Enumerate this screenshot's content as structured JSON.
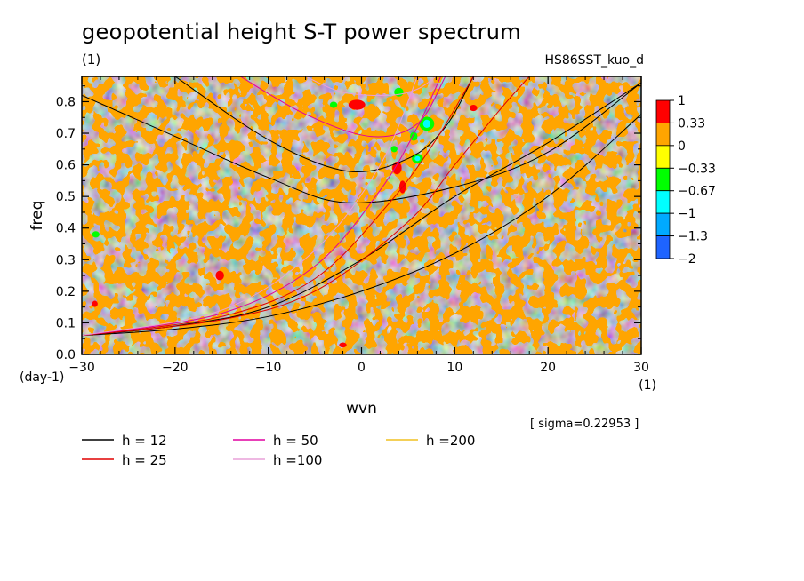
{
  "header": {
    "title": "geopotential height S-T power spectrum",
    "subtitle_left": "(1)",
    "subtitle_right": "HS86SST_kuo_d"
  },
  "sigma_text": "[ sigma=0.22953 ]",
  "chart_data": {
    "type": "heatmap",
    "xlabel": "wvn",
    "ylabel": "freq",
    "x_unit": "(1)",
    "y_unit": "(day-1)",
    "xlim": [
      -30,
      30
    ],
    "ylim": [
      0,
      0.88
    ],
    "x_ticks": [
      -30,
      -20,
      -10,
      0,
      10,
      20,
      30
    ],
    "x_tick_labels": [
      "−30",
      "−20",
      "−10",
      "0",
      "10",
      "20",
      "30"
    ],
    "y_ticks": [
      0.0,
      0.1,
      0.2,
      0.3,
      0.4,
      0.5,
      0.6,
      0.7,
      0.8
    ],
    "y_tick_labels": [
      "0.0",
      "0.1",
      "0.2",
      "0.3",
      "0.4",
      "0.5",
      "0.6",
      "0.7",
      "0.8"
    ],
    "colorbar": {
      "levels": [
        "1",
        "0.33",
        "0",
        "−0.33",
        "−0.67",
        "−1",
        "−1.3",
        "−2"
      ],
      "colors": [
        "#ff0000",
        "#ffa500",
        "#ffff00",
        "#00ff00",
        "#00ffff",
        "#00aaff",
        "#1e64ff"
      ]
    },
    "field_colors": {
      "dominant_a": "#ffa500",
      "dominant_b": "#ffff00",
      "rare": [
        "#ff0000",
        "#00ff00",
        "#00ffff"
      ]
    },
    "dispersion_curves": [
      {
        "name": "h = 12",
        "color": "#000000"
      },
      {
        "name": "h = 25",
        "color": "#e00000"
      },
      {
        "name": "h = 50",
        "color": "#e000a0"
      },
      {
        "name": "h =100",
        "color": "#e8a0d8"
      },
      {
        "name": "h =200",
        "color": "#f0c020"
      }
    ],
    "curves": [
      {
        "color": "#000000",
        "points": [
          [
            -30,
            0.06
          ],
          [
            -20,
            0.08
          ],
          [
            -10,
            0.12
          ],
          [
            0,
            0.2
          ],
          [
            10,
            0.32
          ],
          [
            20,
            0.5
          ],
          [
            30,
            0.76
          ]
        ]
      },
      {
        "color": "#000000",
        "points": [
          [
            -30,
            0.06
          ],
          [
            -20,
            0.09
          ],
          [
            -10,
            0.15
          ],
          [
            0,
            0.3
          ],
          [
            10,
            0.5
          ],
          [
            20,
            0.67
          ],
          [
            30,
            0.86
          ]
        ]
      },
      {
        "color": "#000000",
        "points": [
          [
            -30,
            0.82
          ],
          [
            -20,
            0.69
          ],
          [
            -10,
            0.56
          ],
          [
            -1.5,
            0.48
          ],
          [
            10,
            0.53
          ],
          [
            20,
            0.64
          ],
          [
            30,
            0.86
          ]
        ]
      },
      {
        "color": "#000000",
        "points": [
          [
            -20,
            0.88
          ],
          [
            -10,
            0.68
          ],
          [
            -1.5,
            0.58
          ],
          [
            5,
            0.62
          ],
          [
            9,
            0.72
          ],
          [
            12,
            0.88
          ]
        ]
      },
      {
        "color": "#e00000",
        "points": [
          [
            -30,
            0.06
          ],
          [
            -15,
            0.11
          ],
          [
            -5,
            0.2
          ],
          [
            5,
            0.42
          ],
          [
            10,
            0.6
          ],
          [
            15,
            0.78
          ],
          [
            18,
            0.88
          ]
        ]
      },
      {
        "color": "#e00000",
        "points": [
          [
            -30,
            0.06
          ],
          [
            -15,
            0.12
          ],
          [
            -5,
            0.24
          ],
          [
            3,
            0.48
          ],
          [
            8,
            0.68
          ],
          [
            12,
            0.88
          ]
        ]
      },
      {
        "color": "#e000a0",
        "points": [
          [
            -13,
            0.88
          ],
          [
            -6,
            0.76
          ],
          [
            1,
            0.69
          ],
          [
            6,
            0.73
          ],
          [
            9,
            0.88
          ]
        ]
      },
      {
        "color": "#e000a0",
        "points": [
          [
            -30,
            0.06
          ],
          [
            -15,
            0.13
          ],
          [
            -5,
            0.28
          ],
          [
            2,
            0.52
          ],
          [
            6,
            0.72
          ],
          [
            8.5,
            0.88
          ]
        ]
      },
      {
        "color": "#e8a0d8",
        "points": [
          [
            -6,
            0.88
          ],
          [
            -2,
            0.83
          ],
          [
            3,
            0.82
          ],
          [
            6,
            0.84
          ],
          [
            8,
            0.88
          ]
        ]
      },
      {
        "color": "#e8a0d8",
        "points": [
          [
            -30,
            0.06
          ],
          [
            -15,
            0.14
          ],
          [
            -5,
            0.33
          ],
          [
            2,
            0.6
          ],
          [
            6,
            0.88
          ]
        ]
      }
    ],
    "blobs": [
      {
        "c": "#ff0000",
        "x": -0.5,
        "y": 0.79,
        "rx": 0.9,
        "ry": 0.016
      },
      {
        "c": "#ff0000",
        "x": 3.8,
        "y": 0.59,
        "rx": 0.5,
        "ry": 0.02
      },
      {
        "c": "#ff0000",
        "x": 4.4,
        "y": 0.53,
        "rx": 0.35,
        "ry": 0.02
      },
      {
        "c": "#ff0000",
        "x": -15.2,
        "y": 0.25,
        "rx": 0.45,
        "ry": 0.015
      },
      {
        "c": "#ff0000",
        "x": -28.6,
        "y": 0.16,
        "rx": 0.3,
        "ry": 0.01
      },
      {
        "c": "#ff0000",
        "x": -2,
        "y": 0.03,
        "rx": 0.4,
        "ry": 0.008
      },
      {
        "c": "#ff0000",
        "x": 12,
        "y": 0.78,
        "rx": 0.4,
        "ry": 0.01
      },
      {
        "c": "#00ff00",
        "x": 4,
        "y": 0.83,
        "rx": 0.5,
        "ry": 0.014
      },
      {
        "c": "#00ff00",
        "x": 7,
        "y": 0.73,
        "rx": 0.8,
        "ry": 0.022
      },
      {
        "c": "#00ff00",
        "x": 5.6,
        "y": 0.69,
        "rx": 0.4,
        "ry": 0.014
      },
      {
        "c": "#00ff00",
        "x": 6,
        "y": 0.62,
        "rx": 0.6,
        "ry": 0.015
      },
      {
        "c": "#00ff00",
        "x": 3.5,
        "y": 0.65,
        "rx": 0.35,
        "ry": 0.01
      },
      {
        "c": "#00ff00",
        "x": -28.5,
        "y": 0.38,
        "rx": 0.4,
        "ry": 0.01
      },
      {
        "c": "#00ff00",
        "x": -3,
        "y": 0.79,
        "rx": 0.4,
        "ry": 0.01
      },
      {
        "c": "#00ffff",
        "x": 7,
        "y": 0.73,
        "rx": 0.4,
        "ry": 0.013
      },
      {
        "c": "#00ffff",
        "x": 6,
        "y": 0.62,
        "rx": 0.3,
        "ry": 0.008
      }
    ]
  }
}
